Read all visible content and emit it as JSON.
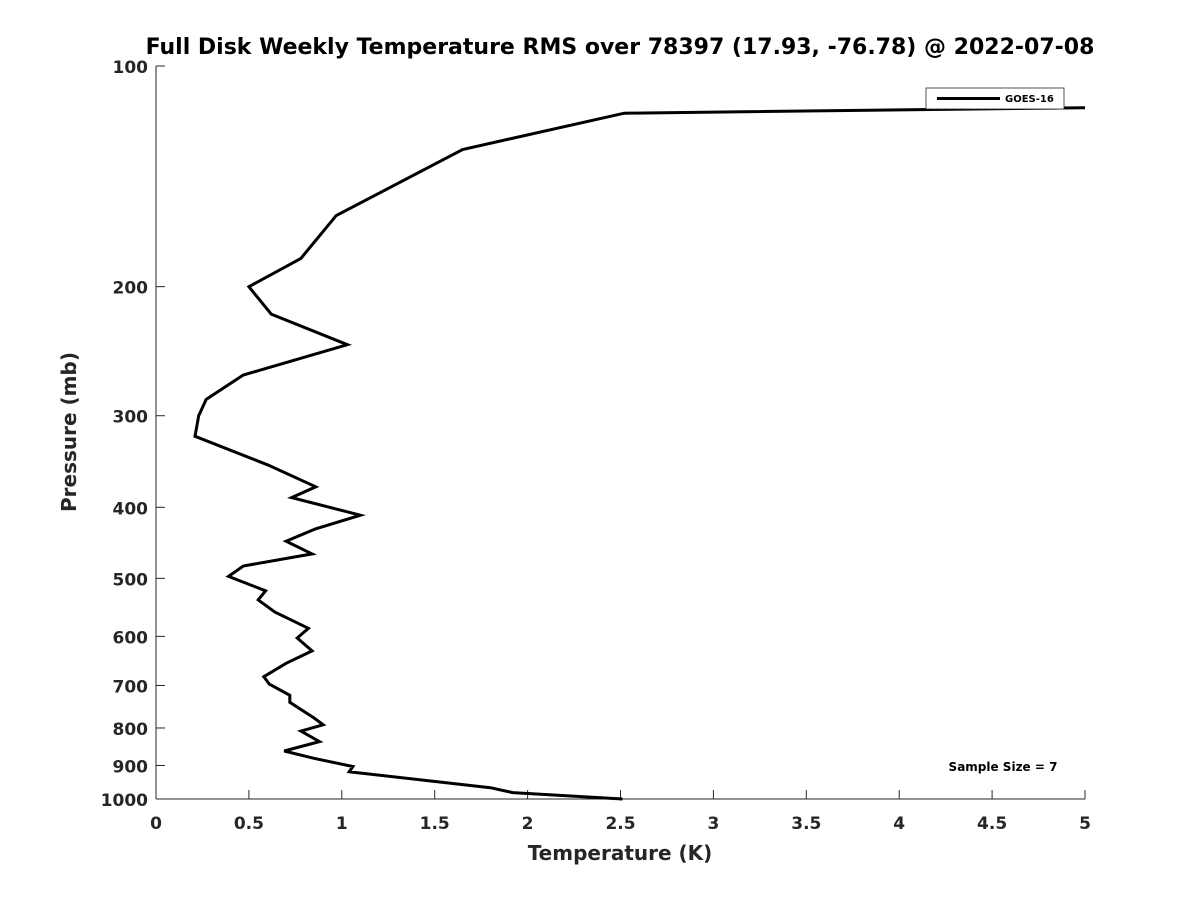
{
  "chart_data": {
    "type": "line",
    "title": "Full Disk Weekly Temperature RMS over 78397 (17.93, -76.78) @ 2022-07-08",
    "xlabel": "Temperature (K)",
    "ylabel": "Pressure (mb)",
    "xlim": [
      0,
      5
    ],
    "ylim": [
      100,
      1000
    ],
    "y_scale": "log",
    "y_reversed": true,
    "x_ticks": [
      0,
      0.5,
      1,
      1.5,
      2,
      2.5,
      3,
      3.5,
      4,
      4.5,
      5
    ],
    "x_tick_labels": [
      "0",
      "0.5",
      "1",
      "1.5",
      "2",
      "2.5",
      "3",
      "3.5",
      "4",
      "4.5",
      "5"
    ],
    "y_ticks": [
      100,
      200,
      300,
      400,
      500,
      600,
      700,
      800,
      900,
      1000
    ],
    "y_tick_labels": [
      "100",
      "200",
      "300",
      "400",
      "500",
      "600",
      "700",
      "800",
      "900",
      "1000"
    ],
    "grid": false,
    "legend_position": "top-right",
    "series": [
      {
        "name": "GOES-16",
        "color": "#000000",
        "x": [
          5.0,
          2.52,
          1.65,
          0.97,
          0.78,
          0.5,
          0.62,
          1.03,
          0.47,
          0.27,
          0.23,
          0.21,
          0.6,
          0.86,
          0.73,
          1.1,
          0.86,
          0.7,
          0.84,
          0.47,
          0.39,
          0.59,
          0.55,
          0.64,
          0.82,
          0.76,
          0.84,
          0.7,
          0.58,
          0.61,
          0.72,
          0.72,
          0.85,
          0.9,
          0.78,
          0.88,
          0.69,
          0.85,
          1.06,
          1.04,
          1.8,
          1.92,
          2.51
        ],
        "y": [
          114,
          116,
          130,
          160,
          183,
          200,
          218,
          240,
          264,
          285,
          300,
          320,
          350,
          375,
          388,
          410,
          428,
          445,
          463,
          481,
          497,
          520,
          535,
          556,
          585,
          603,
          628,
          653,
          681,
          697,
          722,
          738,
          775,
          792,
          808,
          835,
          860,
          880,
          903,
          918,
          965,
          980,
          1000
        ]
      }
    ],
    "annotations": [
      "Sample Size = 7"
    ]
  }
}
